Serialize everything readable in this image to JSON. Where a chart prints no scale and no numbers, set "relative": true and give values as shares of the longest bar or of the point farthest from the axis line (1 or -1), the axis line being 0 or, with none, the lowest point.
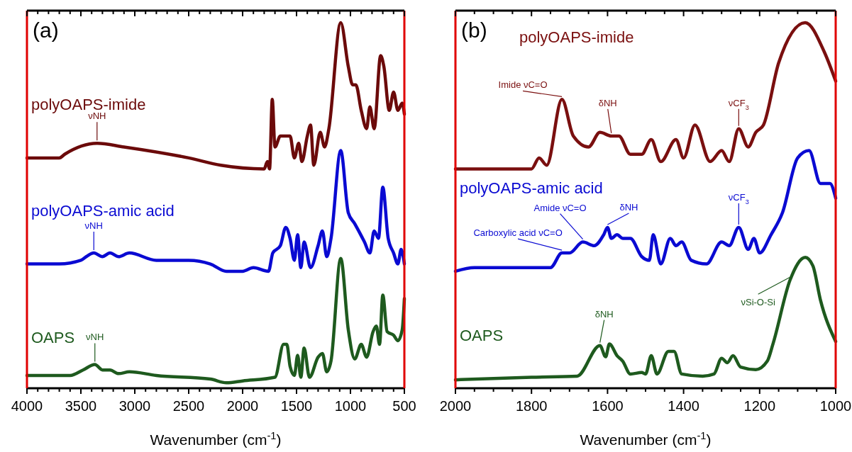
{
  "chart_data": [
    {
      "type": "line",
      "title": "(a)",
      "xlabel": "Wavenumber (cm$^{-1}$)",
      "relative": true,
      "xlim": [
        4000,
        500
      ],
      "xticks": [
        4000,
        {
          "value": 3900,
          "label": null
        },
        {
          "value": 3800,
          "label": null
        },
        {
          "value": 3700,
          "label": null
        },
        {
          "value": 3600,
          "label": null
        },
        3500,
        {
          "value": 3400,
          "label": null
        },
        {
          "value": 3300,
          "label": null
        },
        {
          "value": 3200,
          "label": null
        },
        {
          "value": 3100,
          "label": null
        },
        3000,
        {
          "value": 2900,
          "label": null
        },
        {
          "value": 2800,
          "label": null
        },
        {
          "value": 2700,
          "label": null
        },
        {
          "value": 2600,
          "label": null
        },
        2500,
        {
          "value": 2400,
          "label": null
        },
        {
          "value": 2300,
          "label": null
        },
        {
          "value": 2200,
          "label": null
        },
        {
          "value": 2100,
          "label": null
        },
        2000,
        {
          "value": 1900,
          "label": null
        },
        {
          "value": 1800,
          "label": null
        },
        {
          "value": 1700,
          "label": null
        },
        {
          "value": 1600,
          "label": null
        },
        1500,
        {
          "value": 1400,
          "label": null
        },
        {
          "value": 1300,
          "label": null
        },
        {
          "value": 1200,
          "label": null
        },
        {
          "value": 1100,
          "label": null
        },
        1000,
        {
          "value": 900,
          "label": null
        },
        {
          "value": 800,
          "label": null
        },
        {
          "value": 700,
          "label": null
        },
        {
          "value": 600,
          "label": null
        },
        500
      ],
      "series": [
        {
          "name": "polyOAPS-imide",
          "color": "#6b0a0a",
          "x": [
            4000,
            3700,
            3650,
            3350,
            3100,
            2500,
            2200,
            1800,
            1770,
            1750,
            1725,
            1700,
            1650,
            1560,
            1520,
            1480,
            1450,
            1400,
            1370,
            1340,
            1280,
            1240,
            1200,
            1090,
            1020,
            980,
            950,
            900,
            850,
            820,
            780,
            720,
            690,
            640,
            600,
            560,
            520,
            500
          ],
          "values": [
            0.63,
            0.63,
            0.64,
            0.67,
            0.66,
            0.63,
            0.61,
            0.6,
            0.62,
            0.6,
            0.79,
            0.66,
            0.69,
            0.69,
            0.63,
            0.67,
            0.62,
            0.69,
            0.72,
            0.61,
            0.7,
            0.66,
            0.71,
            1.0,
            0.88,
            0.83,
            0.83,
            0.76,
            0.71,
            0.77,
            0.71,
            0.91,
            0.88,
            0.76,
            0.81,
            0.76,
            0.78,
            0.75
          ]
        },
        {
          "name": "polyOAPS-amic acid",
          "color": "#0a0ad2",
          "x": [
            4000,
            3700,
            3500,
            3450,
            3380,
            3300,
            3230,
            3150,
            3050,
            2800,
            2500,
            2300,
            2150,
            2000,
            1900,
            1760,
            1720,
            1650,
            1600,
            1560,
            1520,
            1490,
            1460,
            1430,
            1370,
            1300,
            1260,
            1220,
            1180,
            1090,
            1020,
            960,
            870,
            820,
            780,
            740,
            700,
            650,
            600,
            560,
            530,
            500
          ],
          "values": [
            0.34,
            0.34,
            0.35,
            0.36,
            0.37,
            0.36,
            0.37,
            0.36,
            0.37,
            0.35,
            0.35,
            0.34,
            0.32,
            0.32,
            0.33,
            0.32,
            0.37,
            0.39,
            0.44,
            0.41,
            0.35,
            0.42,
            0.33,
            0.4,
            0.33,
            0.39,
            0.43,
            0.36,
            0.41,
            0.65,
            0.48,
            0.45,
            0.4,
            0.37,
            0.43,
            0.41,
            0.55,
            0.41,
            0.37,
            0.34,
            0.38,
            0.34
          ]
        },
        {
          "name": "OAPS",
          "color": "#1e5a1e",
          "x": [
            4000,
            3600,
            3480,
            3370,
            3300,
            3230,
            3150,
            3050,
            2800,
            2300,
            2150,
            2000,
            1700,
            1620,
            1590,
            1560,
            1520,
            1490,
            1460,
            1430,
            1380,
            1300,
            1260,
            1220,
            1180,
            1090,
            1020,
            960,
            900,
            850,
            790,
            760,
            730,
            700,
            660,
            600,
            560,
            520,
            500
          ],
          "values": [
            0.035,
            0.035,
            0.05,
            0.065,
            0.05,
            0.05,
            0.04,
            0.045,
            0.035,
            0.025,
            0.015,
            0.02,
            0.03,
            0.12,
            0.12,
            0.06,
            0.035,
            0.09,
            0.03,
            0.11,
            0.03,
            0.085,
            0.095,
            0.045,
            0.075,
            0.355,
            0.16,
            0.08,
            0.12,
            0.085,
            0.155,
            0.17,
            0.12,
            0.255,
            0.155,
            0.145,
            0.13,
            0.16,
            0.245
          ]
        }
      ],
      "annotations": [
        {
          "text": "νNH",
          "x": 3350,
          "y": 0.67
        },
        {
          "text": "νNH",
          "x": 3380,
          "y": 0.37
        },
        {
          "text": "νNH",
          "x": 3370,
          "y": 0.065
        }
      ]
    },
    {
      "type": "line",
      "title": "(b)",
      "xlabel": "Wavenumber (cm$^{-1}$)",
      "relative": true,
      "xlim": [
        2000,
        1000
      ],
      "xticks": [
        2000,
        {
          "value": 1950,
          "label": null
        },
        {
          "value": 1900,
          "label": null
        },
        {
          "value": 1850,
          "label": null
        },
        1800,
        {
          "value": 1750,
          "label": null
        },
        {
          "value": 1700,
          "label": null
        },
        {
          "value": 1650,
          "label": null
        },
        1600,
        {
          "value": 1550,
          "label": null
        },
        {
          "value": 1500,
          "label": null
        },
        {
          "value": 1450,
          "label": null
        },
        1400,
        {
          "value": 1350,
          "label": null
        },
        {
          "value": 1300,
          "label": null
        },
        {
          "value": 1250,
          "label": null
        },
        1200,
        {
          "value": 1150,
          "label": null
        },
        {
          "value": 1100,
          "label": null
        },
        {
          "value": 1050,
          "label": null
        },
        1000
      ],
      "series": [
        {
          "name": "polyOAPS-imide",
          "color": "#7a0f0f",
          "x": [
            2000,
            1900,
            1800,
            1780,
            1760,
            1720,
            1690,
            1650,
            1620,
            1590,
            1570,
            1540,
            1510,
            1485,
            1460,
            1420,
            1400,
            1370,
            1330,
            1300,
            1280,
            1255,
            1230,
            1210,
            1190,
            1150,
            1080,
            1030,
            1000
          ],
          "values": [
            0.6,
            0.6,
            0.6,
            0.63,
            0.61,
            0.79,
            0.69,
            0.66,
            0.7,
            0.69,
            0.69,
            0.64,
            0.64,
            0.68,
            0.62,
            0.68,
            0.63,
            0.72,
            0.62,
            0.65,
            0.62,
            0.71,
            0.66,
            0.7,
            0.72,
            0.89,
            1.0,
            0.92,
            0.84
          ]
        },
        {
          "name": "polyOAPS-amic acid",
          "color": "#0a0ad2",
          "x": [
            2000,
            1950,
            1800,
            1750,
            1720,
            1700,
            1665,
            1635,
            1610,
            1600,
            1590,
            1575,
            1560,
            1540,
            1510,
            1490,
            1480,
            1460,
            1435,
            1420,
            1405,
            1380,
            1340,
            1300,
            1280,
            1255,
            1230,
            1215,
            1200,
            1170,
            1140,
            1100,
            1070,
            1040,
            1015,
            1000
          ],
          "values": [
            0.32,
            0.33,
            0.33,
            0.33,
            0.37,
            0.37,
            0.4,
            0.39,
            0.42,
            0.44,
            0.41,
            0.42,
            0.41,
            0.41,
            0.36,
            0.35,
            0.42,
            0.34,
            0.41,
            0.39,
            0.4,
            0.35,
            0.34,
            0.4,
            0.39,
            0.44,
            0.38,
            0.41,
            0.37,
            0.42,
            0.48,
            0.63,
            0.65,
            0.56,
            0.56,
            0.52
          ]
        },
        {
          "name": "OAPS",
          "color": "#1e5a1e",
          "x": [
            2000,
            1800,
            1680,
            1620,
            1605,
            1595,
            1575,
            1560,
            1540,
            1510,
            1500,
            1485,
            1470,
            1440,
            1425,
            1405,
            1350,
            1320,
            1300,
            1285,
            1270,
            1250,
            1210,
            1180,
            1165,
            1120,
            1080,
            1060,
            1040,
            1000
          ],
          "values": [
            0.023,
            0.03,
            0.033,
            0.117,
            0.086,
            0.121,
            0.089,
            0.074,
            0.039,
            0.043,
            0.039,
            0.089,
            0.039,
            0.101,
            0.101,
            0.039,
            0.033,
            0.039,
            0.082,
            0.07,
            0.089,
            0.058,
            0.051,
            0.074,
            0.121,
            0.296,
            0.358,
            0.335,
            0.241,
            0.128
          ]
        }
      ],
      "annotations": [
        {
          "text": "Imide νC=O",
          "x": 1720,
          "y": 0.79
        },
        {
          "text": "δNH",
          "x": 1590,
          "y": 0.69
        },
        {
          "text": "νCF$_{3}$",
          "x": 1255,
          "y": 0.71
        },
        {
          "text": "Amide νC=O",
          "x": 1665,
          "y": 0.4
        },
        {
          "text": "Carboxylic acid νC=O",
          "x": 1720,
          "y": 0.37
        },
        {
          "text": "δNH",
          "x": 1600,
          "y": 0.44
        },
        {
          "text": "νCF$_{3}$",
          "x": 1255,
          "y": 0.44
        },
        {
          "text": "δNH",
          "x": 1620,
          "y": 0.117
        },
        {
          "text": "νSi-O-Si",
          "x": 1120,
          "y": 0.296
        }
      ]
    }
  ]
}
